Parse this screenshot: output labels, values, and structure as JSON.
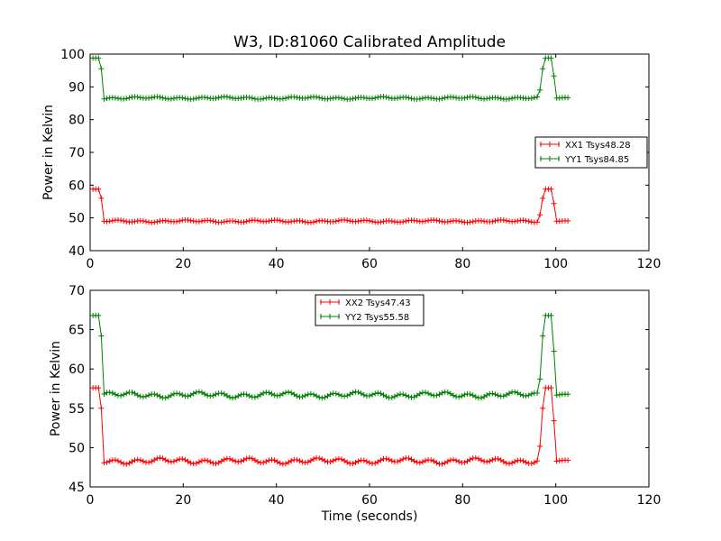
{
  "figure": {
    "title": "W3, ID:81060 Calibrated Amplitude",
    "xlabel": "Time (seconds)"
  },
  "chart_data": [
    {
      "type": "line",
      "ylabel": "Power in Kelvin",
      "xlim": [
        0,
        120
      ],
      "ylim": [
        40,
        100
      ],
      "xticks": [
        "0",
        "20",
        "40",
        "60",
        "80",
        "100",
        "120"
      ],
      "yticks": [
        "40",
        "50",
        "60",
        "70",
        "80",
        "90",
        "100"
      ],
      "legend_position": "center-right",
      "grid": false,
      "series": [
        {
          "name": "XX1 Tsys48.28",
          "color": "#ff0000",
          "baseline": 49.0,
          "high": 58.8,
          "spike_mid": 56.0
        },
        {
          "name": "YY1 Tsys84.85",
          "color": "#008000",
          "baseline": 86.6,
          "high": 98.8,
          "spike_mid": 95.5
        }
      ]
    },
    {
      "type": "line",
      "ylabel": "Power in Kelvin",
      "xlabel": "Time (seconds)",
      "xlim": [
        0,
        120
      ],
      "ylim": [
        45,
        70
      ],
      "xticks": [
        "0",
        "20",
        "40",
        "60",
        "80",
        "100",
        "120"
      ],
      "yticks": [
        "45",
        "50",
        "55",
        "60",
        "65",
        "70"
      ],
      "legend_position": "upper-center",
      "grid": false,
      "series": [
        {
          "name": "XX2 Tsys47.43",
          "color": "#ff0000",
          "baseline": 48.3,
          "high": 57.6,
          "spike_mid": 55.0
        },
        {
          "name": "YY2 Tsys55.58",
          "color": "#008000",
          "baseline": 56.7,
          "high": 66.8,
          "spike_mid": 64.2
        }
      ]
    }
  ]
}
